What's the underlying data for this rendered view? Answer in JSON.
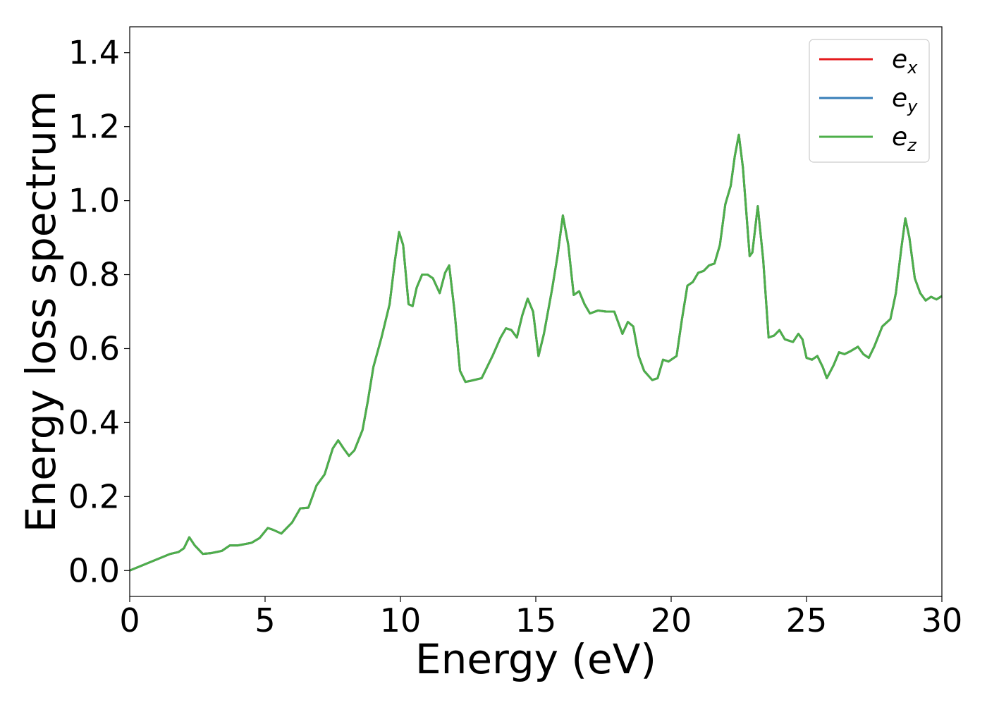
{
  "chart_data": {
    "type": "line",
    "xlabel": "Energy (eV)",
    "ylabel": "Energy loss spectrum",
    "xlim": [
      0,
      30
    ],
    "ylim": [
      -0.07,
      1.47
    ],
    "xticks": [
      0,
      5,
      10,
      15,
      20,
      25,
      30
    ],
    "xtick_labels": [
      "0",
      "5",
      "10",
      "15",
      "20",
      "25",
      "30"
    ],
    "yticks": [
      0.0,
      0.2,
      0.4,
      0.6,
      0.8,
      1.0,
      1.2,
      1.4
    ],
    "ytick_labels": [
      "0.0",
      "0.2",
      "0.4",
      "0.6",
      "0.8",
      "1.0",
      "1.2",
      "1.4"
    ],
    "grid": false,
    "legend_position": "top-right",
    "series": [
      {
        "name": "e_x",
        "legend_base": "e",
        "legend_sub": "x",
        "color": "#e41a1c"
      },
      {
        "name": "e_y",
        "legend_base": "e",
        "legend_sub": "y",
        "color": "#377eb8"
      },
      {
        "name": "e_z",
        "legend_base": "e",
        "legend_sub": "z",
        "color": "#4daf4a"
      }
    ],
    "x": [
      0,
      0.5,
      1.0,
      1.5,
      1.8,
      2.0,
      2.2,
      2.4,
      2.7,
      3.0,
      3.4,
      3.7,
      4.0,
      4.5,
      4.8,
      5.1,
      5.3,
      5.6,
      6.0,
      6.3,
      6.6,
      6.9,
      7.2,
      7.5,
      7.7,
      7.9,
      8.1,
      8.3,
      8.6,
      8.8,
      9.0,
      9.3,
      9.6,
      9.8,
      9.95,
      10.1,
      10.3,
      10.45,
      10.6,
      10.8,
      11.0,
      11.2,
      11.45,
      11.65,
      11.8,
      12.0,
      12.2,
      12.4,
      12.6,
      13.0,
      13.4,
      13.7,
      13.9,
      14.1,
      14.3,
      14.5,
      14.7,
      14.9,
      15.1,
      15.3,
      15.6,
      15.8,
      16.0,
      16.2,
      16.4,
      16.6,
      16.8,
      17.0,
      17.3,
      17.6,
      17.9,
      18.2,
      18.4,
      18.6,
      18.8,
      19.0,
      19.3,
      19.5,
      19.7,
      19.9,
      20.2,
      20.4,
      20.6,
      20.8,
      21.0,
      21.2,
      21.4,
      21.6,
      21.8,
      22.0,
      22.2,
      22.35,
      22.5,
      22.65,
      22.9,
      23.0,
      23.2,
      23.4,
      23.6,
      23.8,
      24.0,
      24.2,
      24.5,
      24.7,
      24.85,
      25.0,
      25.2,
      25.4,
      25.6,
      25.75,
      26.0,
      26.2,
      26.4,
      26.6,
      26.9,
      27.1,
      27.3,
      27.5,
      27.8,
      28.1,
      28.3,
      28.5,
      28.65,
      28.8,
      29.0,
      29.2,
      29.4,
      29.6,
      29.8,
      30.0
    ],
    "values": [
      0.0,
      0.015,
      0.03,
      0.045,
      0.05,
      0.06,
      0.09,
      0.068,
      0.045,
      0.047,
      0.053,
      0.068,
      0.068,
      0.075,
      0.088,
      0.115,
      0.11,
      0.1,
      0.13,
      0.168,
      0.17,
      0.23,
      0.26,
      0.33,
      0.352,
      0.33,
      0.31,
      0.325,
      0.38,
      0.46,
      0.55,
      0.63,
      0.72,
      0.84,
      0.915,
      0.88,
      0.72,
      0.715,
      0.765,
      0.8,
      0.8,
      0.79,
      0.75,
      0.805,
      0.825,
      0.7,
      0.54,
      0.51,
      0.513,
      0.52,
      0.58,
      0.63,
      0.655,
      0.65,
      0.63,
      0.69,
      0.735,
      0.7,
      0.58,
      0.64,
      0.76,
      0.85,
      0.96,
      0.88,
      0.745,
      0.755,
      0.72,
      0.695,
      0.703,
      0.7,
      0.7,
      0.64,
      0.672,
      0.66,
      0.58,
      0.54,
      0.515,
      0.52,
      0.57,
      0.565,
      0.58,
      0.68,
      0.77,
      0.78,
      0.805,
      0.81,
      0.825,
      0.83,
      0.88,
      0.99,
      1.04,
      1.12,
      1.178,
      1.09,
      0.85,
      0.86,
      0.985,
      0.84,
      0.63,
      0.635,
      0.65,
      0.625,
      0.618,
      0.64,
      0.625,
      0.575,
      0.57,
      0.58,
      0.55,
      0.52,
      0.555,
      0.59,
      0.585,
      0.592,
      0.605,
      0.585,
      0.575,
      0.605,
      0.66,
      0.68,
      0.75,
      0.87,
      0.952,
      0.9,
      0.79,
      0.75,
      0.73,
      0.74,
      0.733,
      0.742
    ]
  }
}
